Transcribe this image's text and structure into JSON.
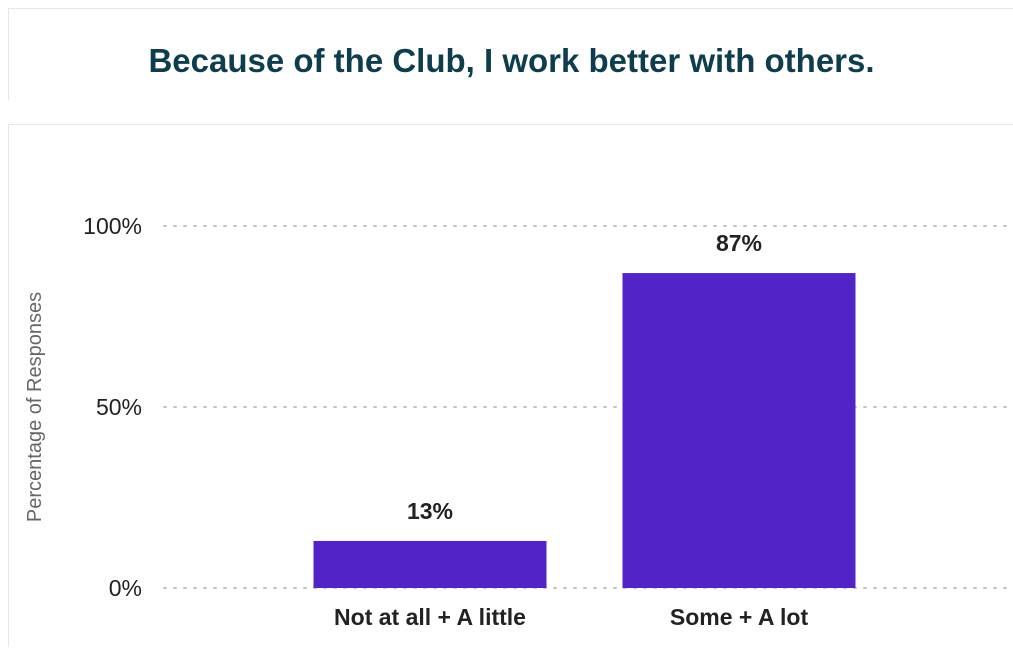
{
  "chart_data": {
    "type": "bar",
    "title": "Because of the Club, I work better with others.",
    "ylabel": "Percentage of Responses",
    "xlabel": "",
    "categories": [
      "Not at all + A little",
      "Some + A lot"
    ],
    "values": [
      13,
      87
    ],
    "value_labels": [
      "13%",
      "87%"
    ],
    "ylim": [
      0,
      100
    ],
    "yticks": [
      0,
      50,
      100
    ],
    "ytick_labels": [
      "0%",
      "50%",
      "100%"
    ],
    "grid": "horizontal dotted",
    "bar_color": "#5224c8",
    "title_color": "#0f3d4c",
    "legend": "none"
  }
}
